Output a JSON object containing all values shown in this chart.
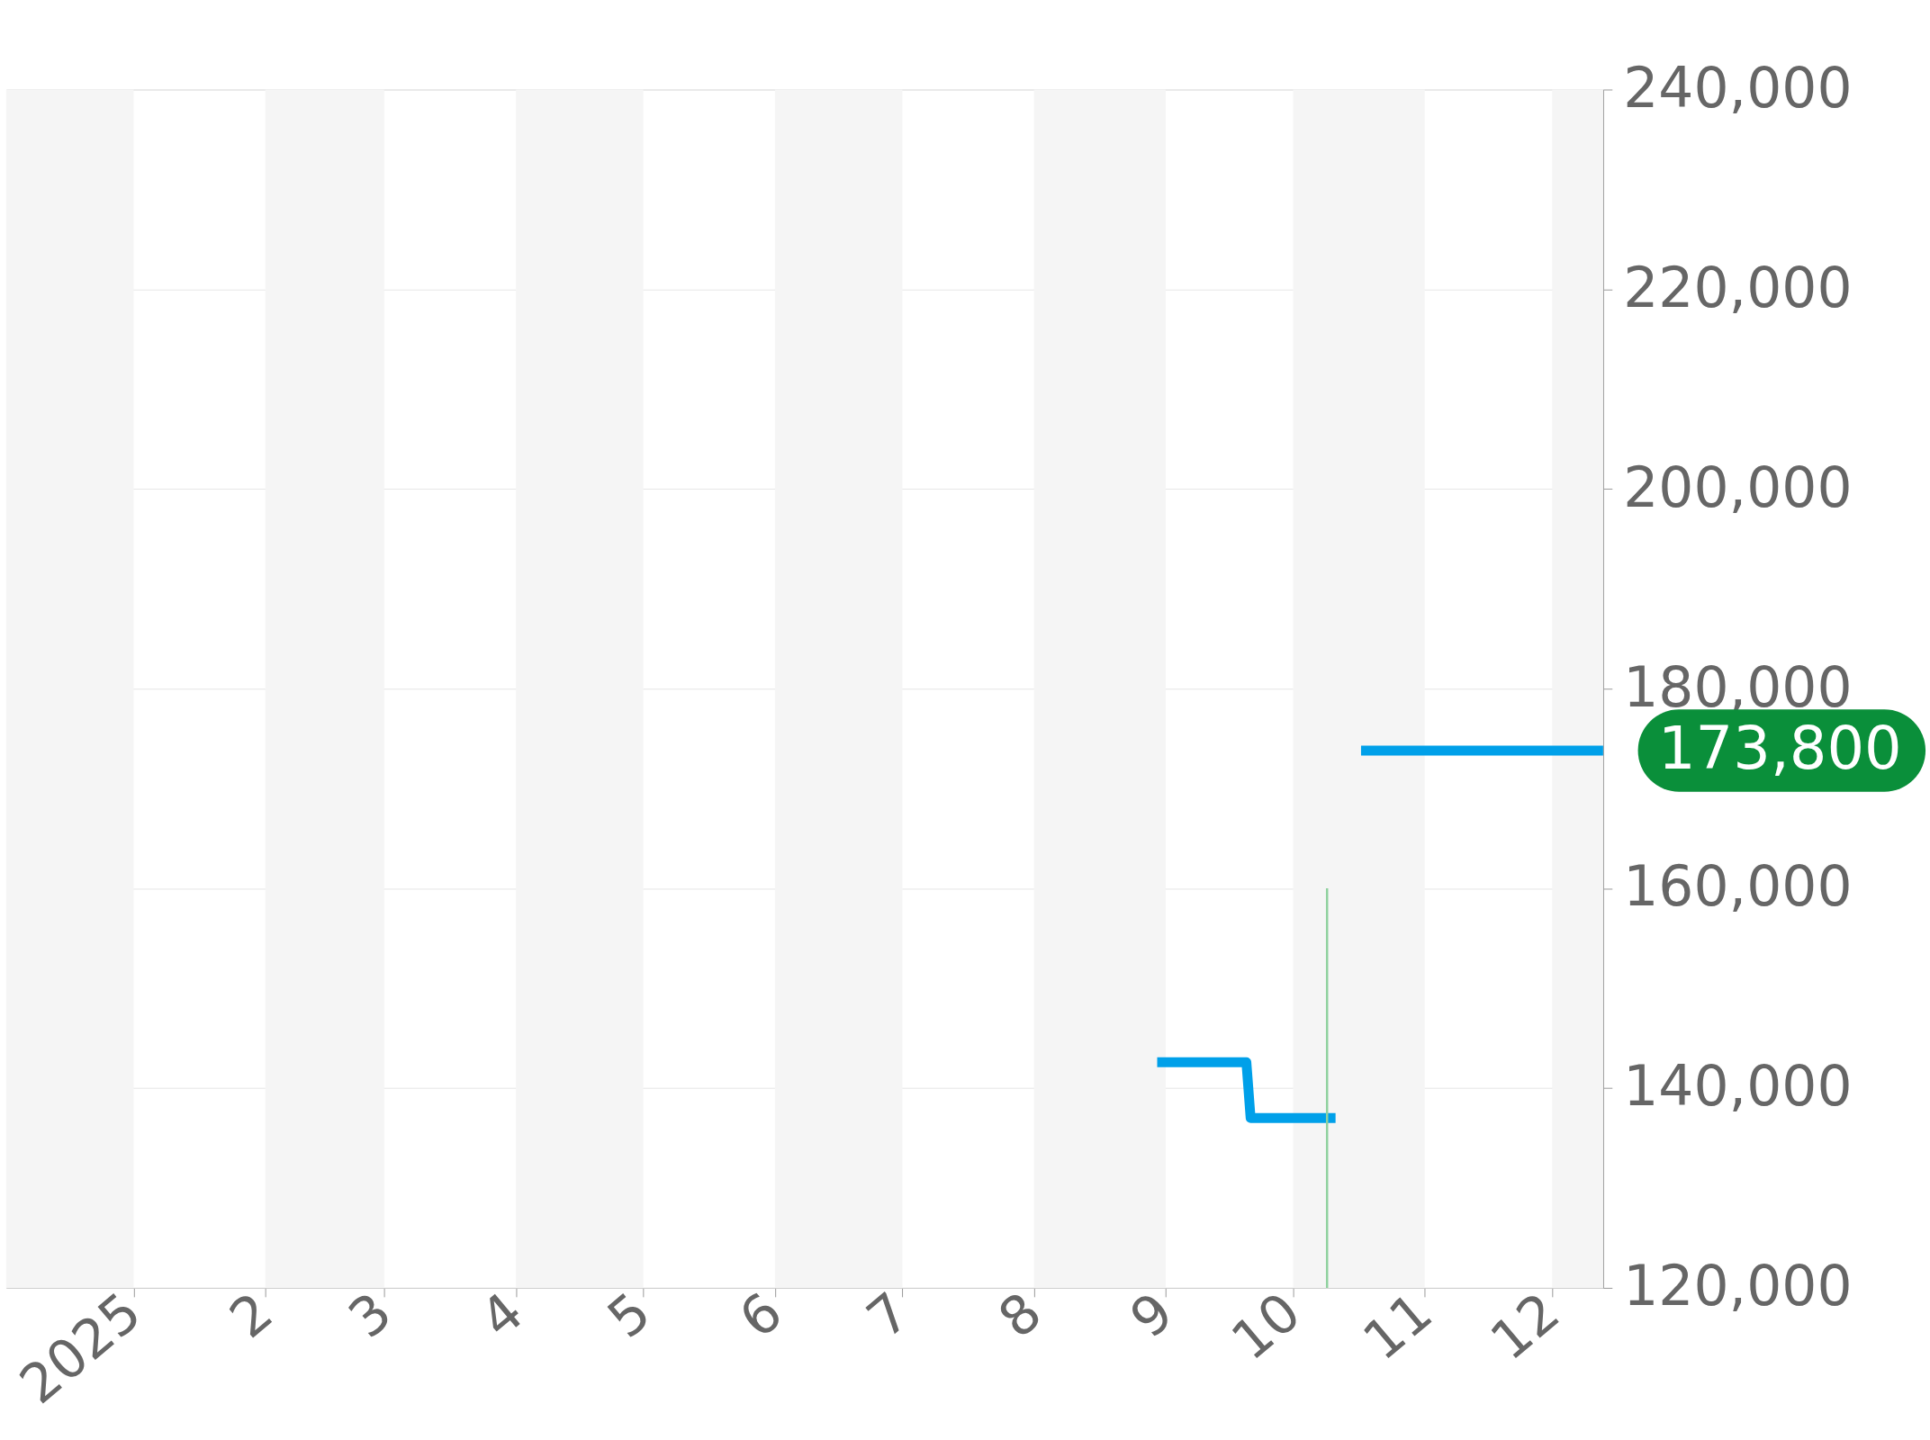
{
  "chart_data": {
    "type": "line",
    "x": [
      "2025-08-30",
      "2025-09-20",
      "2025-09-21",
      "2025-10-11",
      "2025-10-12",
      "2025-10-17",
      "2025-12-13"
    ],
    "series": [
      {
        "color": "#00a0e9",
        "values": [
          142600,
          142600,
          137000,
          137000,
          null,
          173800,
          173800
        ]
      },
      {
        "type": "line",
        "color": "#8fd19e",
        "x": [
          "2025-10-09",
          "2025-10-09"
        ],
        "values": [
          120000,
          160000
        ]
      }
    ],
    "xlim": [
      "2024-12-02",
      "2025-12-13"
    ],
    "xticks": [
      {
        "value": "2025-01-01",
        "label": "2025"
      },
      {
        "value": "2025-02-01",
        "label": "2"
      },
      {
        "value": "2025-03-01",
        "label": "3"
      },
      {
        "value": "2025-04-01",
        "label": "4"
      },
      {
        "value": "2025-05-01",
        "label": "5"
      },
      {
        "value": "2025-06-01",
        "label": "6"
      },
      {
        "value": "2025-07-01",
        "label": "7"
      },
      {
        "value": "2025-08-01",
        "label": "8"
      },
      {
        "value": "2025-09-01",
        "label": "9"
      },
      {
        "value": "2025-10-01",
        "label": "10"
      },
      {
        "value": "2025-11-01",
        "label": "11"
      },
      {
        "value": "2025-12-01",
        "label": "12"
      }
    ],
    "ylim": [
      120000,
      240000
    ],
    "yticks": [
      {
        "value": 120000,
        "label": "120,000"
      },
      {
        "value": 140000,
        "label": "140,000"
      },
      {
        "value": 160000,
        "label": "160,000"
      },
      {
        "value": 180000,
        "label": "180,000"
      },
      {
        "value": 200000,
        "label": "200,000"
      },
      {
        "value": 220000,
        "label": "220,000"
      },
      {
        "value": 240000,
        "label": "240,000"
      }
    ],
    "bands": [
      {
        "axis": "x",
        "from": "2024-12-02",
        "to": "2025-01-01",
        "color": "#f5f5f5"
      },
      {
        "axis": "x",
        "from": "2025-02-01",
        "to": "2025-03-01",
        "color": "#f5f5f5"
      },
      {
        "axis": "x",
        "from": "2025-04-01",
        "to": "2025-05-01",
        "color": "#f5f5f5"
      },
      {
        "axis": "x",
        "from": "2025-06-01",
        "to": "2025-07-01",
        "color": "#f5f5f5"
      },
      {
        "axis": "x",
        "from": "2025-08-01",
        "to": "2025-09-01",
        "color": "#f5f5f5"
      },
      {
        "axis": "x",
        "from": "2025-10-01",
        "to": "2025-11-01",
        "color": "#f5f5f5"
      },
      {
        "axis": "x",
        "from": "2025-12-01",
        "to": "2025-12-13",
        "color": "#f5f5f5"
      }
    ],
    "annotations": [
      {
        "text": "173,800",
        "x": "2025-12-13",
        "y": 173800
      }
    ],
    "grid": "y"
  }
}
